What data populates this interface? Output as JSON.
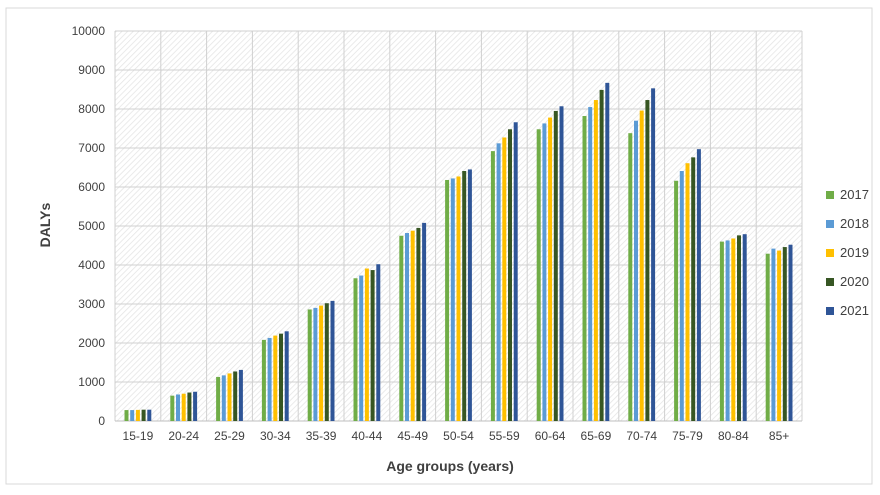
{
  "chart_data": {
    "type": "bar",
    "xlabel": "Age groups (years)",
    "ylabel": "DALYs",
    "ylim": [
      0,
      10000
    ],
    "yticks": [
      0,
      1000,
      2000,
      3000,
      4000,
      5000,
      6000,
      7000,
      8000,
      9000,
      10000
    ],
    "grid": true,
    "legend_position": "right",
    "categories": [
      "15-19",
      "20-24",
      "25-29",
      "30-34",
      "35-39",
      "40-44",
      "45-49",
      "50-54",
      "55-59",
      "60-64",
      "65-69",
      "70-74",
      "75-79",
      "80-84",
      "85+"
    ],
    "series": [
      {
        "name": "2017",
        "color": "#70ad47",
        "values": [
          280,
          650,
          1130,
          2080,
          2860,
          3660,
          4750,
          6180,
          6920,
          7480,
          7820,
          7380,
          6160,
          4600,
          4290
        ]
      },
      {
        "name": "2018",
        "color": "#5b9bd5",
        "values": [
          280,
          680,
          1170,
          2130,
          2900,
          3730,
          4820,
          6220,
          7120,
          7630,
          8050,
          7700,
          6410,
          4630,
          4420
        ]
      },
      {
        "name": "2019",
        "color": "#ffc000",
        "values": [
          285,
          700,
          1220,
          2190,
          2960,
          3910,
          4880,
          6270,
          7270,
          7780,
          8230,
          7960,
          6610,
          4680,
          4370
        ]
      },
      {
        "name": "2020",
        "color": "#375623",
        "values": [
          290,
          730,
          1270,
          2240,
          3020,
          3870,
          4950,
          6410,
          7480,
          7950,
          8490,
          8230,
          6760,
          4760,
          4460
        ]
      },
      {
        "name": "2021",
        "color": "#2f5597",
        "values": [
          290,
          750,
          1310,
          2300,
          3080,
          4020,
          5080,
          6450,
          7660,
          8070,
          8670,
          8530,
          6970,
          4790,
          4520
        ]
      }
    ]
  }
}
